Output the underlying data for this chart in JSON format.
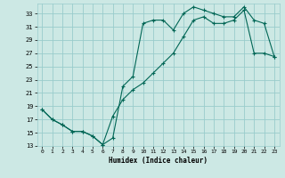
{
  "xlabel": "Humidex (Indice chaleur)",
  "bg_color": "#cce8e4",
  "grid_color": "#99cccc",
  "line_color": "#006655",
  "xlim": [
    -0.5,
    23.5
  ],
  "ylim": [
    13,
    34.5
  ],
  "xticks": [
    0,
    1,
    2,
    3,
    4,
    5,
    6,
    7,
    8,
    9,
    10,
    11,
    12,
    13,
    14,
    15,
    16,
    17,
    18,
    19,
    20,
    21,
    22,
    23
  ],
  "yticks": [
    13,
    15,
    17,
    19,
    21,
    23,
    25,
    27,
    29,
    31,
    33
  ],
  "curve1_x": [
    0,
    1,
    2,
    3,
    4,
    5,
    6,
    7,
    8,
    9,
    10,
    11,
    12,
    13,
    14,
    15,
    16,
    17,
    18,
    19,
    20,
    21,
    22,
    23
  ],
  "curve1_y": [
    18.5,
    17.0,
    16.2,
    15.2,
    15.2,
    14.5,
    13.2,
    14.2,
    22.0,
    23.5,
    31.5,
    32.0,
    32.0,
    30.5,
    33.0,
    34.0,
    33.5,
    33.0,
    32.5,
    32.5,
    34.0,
    32.0,
    31.5,
    26.5
  ],
  "curve2_x": [
    0,
    1,
    2,
    3,
    4,
    5,
    6,
    7,
    8,
    9,
    10,
    11,
    12,
    13,
    14,
    15,
    16,
    17,
    18,
    19,
    20,
    21,
    22,
    23
  ],
  "curve2_y": [
    18.5,
    17.0,
    16.2,
    15.2,
    15.2,
    14.5,
    13.2,
    17.5,
    20.0,
    21.5,
    22.5,
    24.0,
    25.5,
    27.0,
    29.5,
    32.0,
    32.5,
    31.5,
    31.5,
    32.0,
    33.5,
    27.0,
    27.0,
    26.5
  ]
}
